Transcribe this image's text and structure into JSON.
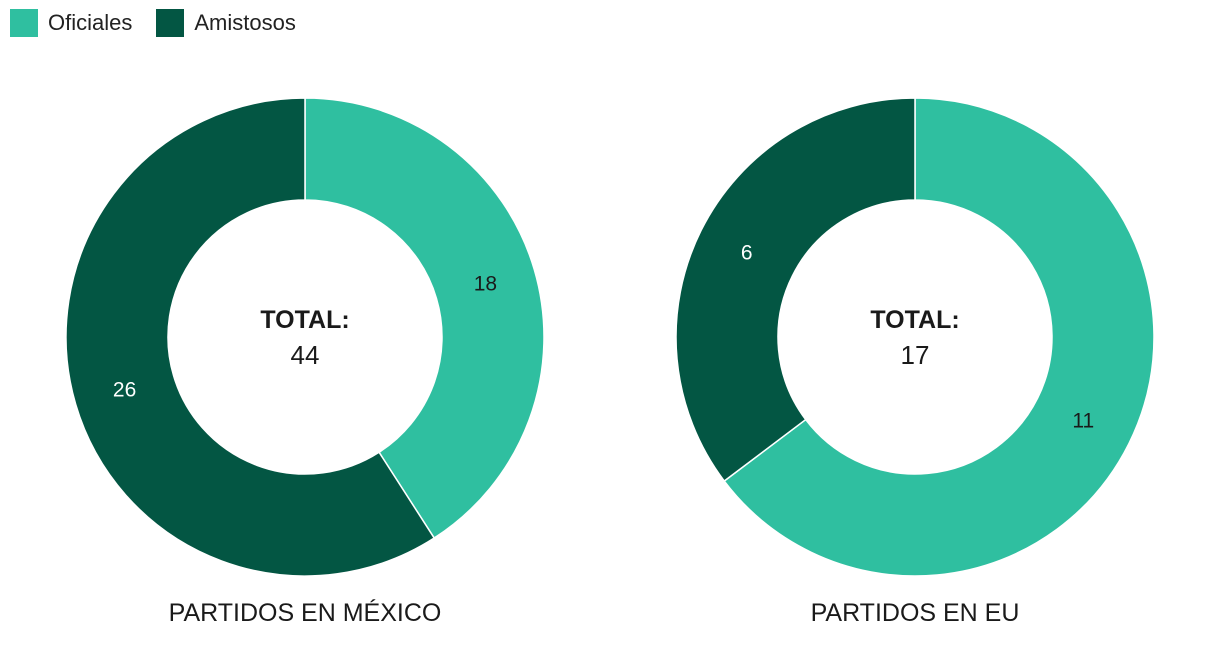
{
  "legend": [
    {
      "label": "Oficiales",
      "color": "#2fbfa0"
    },
    {
      "label": "Amistosos",
      "color": "#035643"
    }
  ],
  "chart_data": [
    {
      "type": "pie",
      "variant": "donut",
      "title": "PARTIDOS EN MÉXICO",
      "center_label": "TOTAL:",
      "center_value": "44",
      "slices": [
        {
          "name": "Oficiales",
          "value": 18,
          "color": "#2fbfa0"
        },
        {
          "name": "Amistosos",
          "value": 26,
          "color": "#035643"
        }
      ]
    },
    {
      "type": "pie",
      "variant": "donut",
      "title": "PARTIDOS EN EU",
      "center_label": "TOTAL:",
      "center_value": "17",
      "slices": [
        {
          "name": "Oficiales",
          "value": 11,
          "color": "#2fbfa0"
        },
        {
          "name": "Amistosos",
          "value": 6,
          "color": "#035643"
        }
      ]
    }
  ]
}
